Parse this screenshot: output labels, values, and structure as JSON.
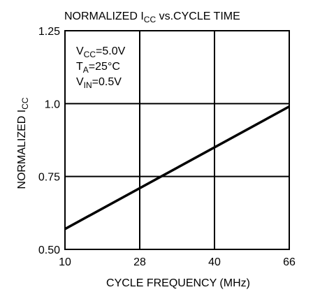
{
  "chart_data": {
    "type": "line",
    "title": {
      "main": "NORMALIZED I",
      "sub": "CC",
      "rest": " vs.CYCLE TIME"
    },
    "xlabel": "CYCLE FREQUENCY (MHz)",
    "ylabel": {
      "main": "NORMALIZED I",
      "sub": "CC"
    },
    "x_ticks": [
      "10",
      "28",
      "40",
      "66"
    ],
    "y_ticks": [
      "0.50",
      "0.75",
      "1.0",
      "1.25"
    ],
    "x_tick_values": [
      10,
      28,
      40,
      66
    ],
    "y_tick_values": [
      0.5,
      0.75,
      1.0,
      1.25
    ],
    "ylim": [
      0.5,
      1.25
    ],
    "grid": true,
    "series": [
      {
        "x": [
          10,
          66
        ],
        "y": [
          0.57,
          0.99
        ]
      }
    ],
    "annotations": [
      {
        "main": "V",
        "sub": "CC",
        "rest": "=5.0V"
      },
      {
        "main": "T",
        "sub": "A",
        "rest": "=25°C"
      },
      {
        "main": "V",
        "sub": "IN",
        "rest": "=0.5V"
      }
    ],
    "colors": {
      "line": "#000000",
      "grid": "#000000",
      "background": "#ffffff"
    }
  }
}
